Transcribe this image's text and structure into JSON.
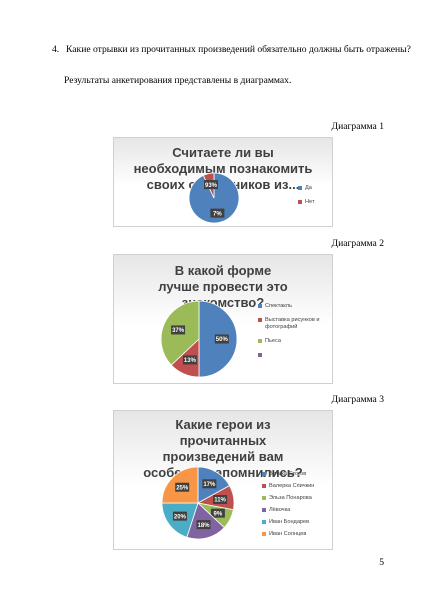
{
  "question": {
    "number": "4.",
    "text": "Какие отрывки из прочитанных произведений обязательно должны быть отражены?"
  },
  "intro": "Результаты анкетирования представлены в диаграммах.",
  "diagrams": [
    {
      "caption": "Диаграмма 1",
      "title": "Считаете ли вы необходимым познакомить своих сверстников из...",
      "labels": [
        "7%",
        "93%"
      ],
      "legend": [
        "Да",
        "Нет"
      ]
    },
    {
      "caption": "Диаграмма 2",
      "title": "В какой форме лучше провести это знакомство?",
      "labels": [
        "50%",
        "13%",
        "37%"
      ],
      "legend": [
        "Спектакль",
        "Выставка рисунков и фотографий",
        "Пьеса",
        ""
      ]
    },
    {
      "caption": "Диаграмма 3",
      "title": "Какие герои из прочитанных произведений вам особенно запомнились?",
      "labels": [
        "17%",
        "11%",
        "9%",
        "18%",
        "20%",
        "25%"
      ],
      "legend": [
        "Витька Стогов",
        "Валерка Спичкин",
        "Эльза Понарова",
        "Лёвочка",
        "Иван Бондарев",
        "Иван Солнцев"
      ]
    }
  ],
  "page_number": "5",
  "chart_data": [
    {
      "type": "pie",
      "title": "Считаете ли вы необходимым познакомить своих сверстников из...",
      "categories": [
        "Да",
        "Нет"
      ],
      "values": [
        93,
        7
      ],
      "colors": [
        "#4f81bd",
        "#c0504d"
      ]
    },
    {
      "type": "pie",
      "title": "В какой форме лучше провести это знакомство?",
      "categories": [
        "Спектакль",
        "Выставка рисунков и фотографий",
        "Пьеса",
        ""
      ],
      "values": [
        50,
        13,
        37,
        0
      ],
      "colors": [
        "#4f81bd",
        "#c0504d",
        "#9bbb59",
        "#8064a2"
      ]
    },
    {
      "type": "pie",
      "title": "Какие герои из прочитанных произведений вам особенно запомнились?",
      "categories": [
        "Витька Стогов",
        "Валерка Спичкин",
        "Эльза Понарова",
        "Лёвочка",
        "Иван Бондарев",
        "Иван Солнцев"
      ],
      "values": [
        17,
        11,
        9,
        18,
        20,
        25
      ],
      "colors": [
        "#4f81bd",
        "#c0504d",
        "#9bbb59",
        "#8064a2",
        "#4bacc6",
        "#f79646"
      ]
    }
  ]
}
